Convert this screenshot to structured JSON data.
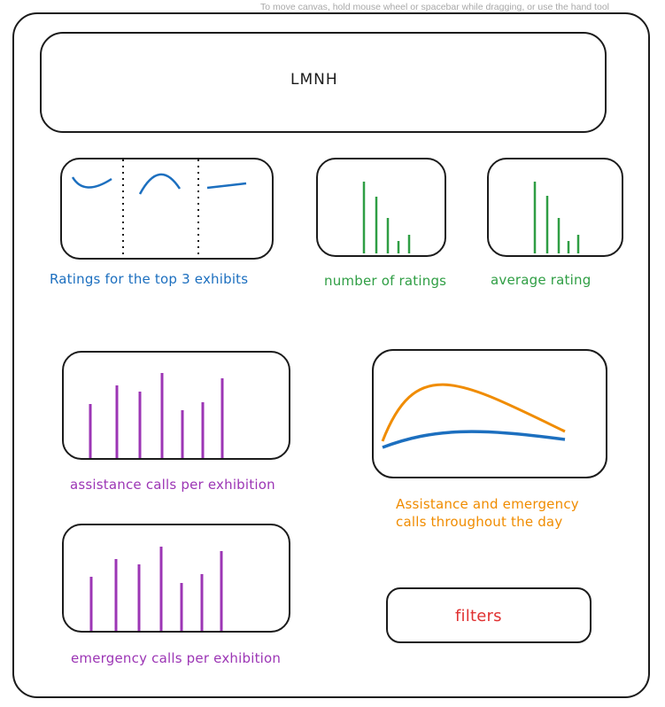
{
  "canvas_hint": "To move canvas, hold mouse wheel or spacebar while dragging, or use the hand tool",
  "header": {
    "title": "LMNH"
  },
  "panels": {
    "top_exhibits": {
      "label": "Ratings for the top 3 exhibits"
    },
    "num_ratings": {
      "label": "number of ratings"
    },
    "avg_rating": {
      "label": "average rating"
    },
    "assistance_calls": {
      "label": "assistance calls per exhibition"
    },
    "day_calls": {
      "label_line1": "Assistance and emergency",
      "label_line2": "calls throughout the day"
    },
    "emergency_calls": {
      "label": "emergency calls per exhibition"
    },
    "filters": {
      "label": "filters"
    }
  },
  "colors": {
    "stroke": "#1b1b1b",
    "blue": "#1c6fbf",
    "green": "#2f9e44",
    "purple": "#9c36b5",
    "orange": "#f08c00",
    "red": "#e03131"
  }
}
